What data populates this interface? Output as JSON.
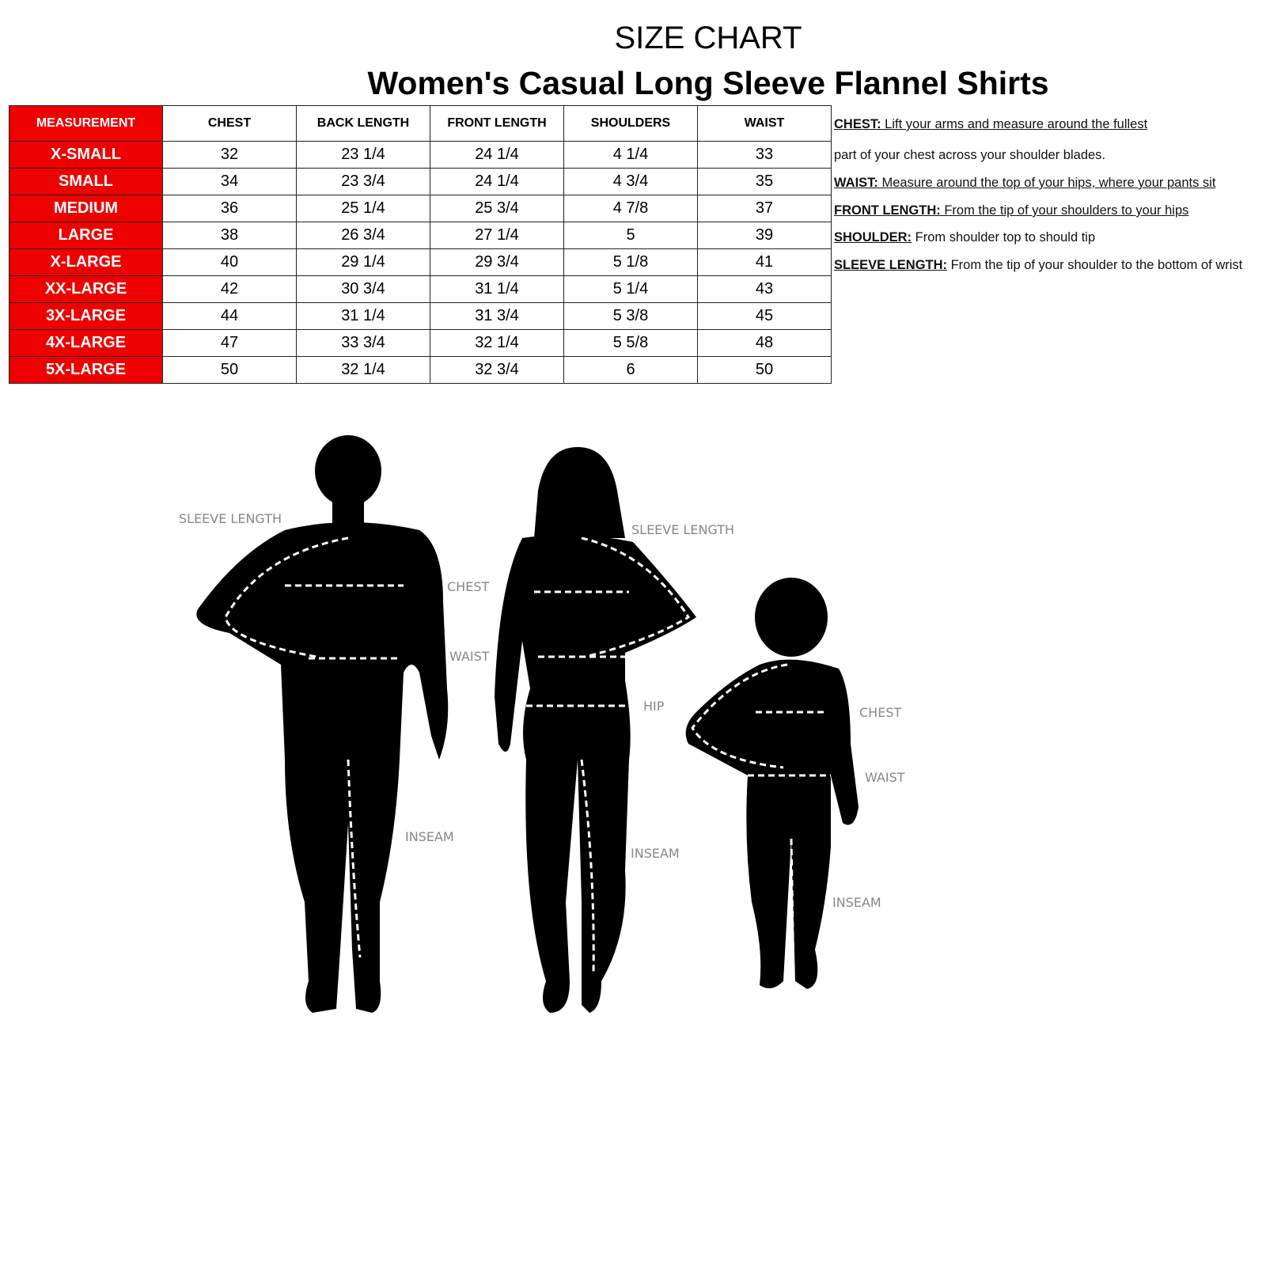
{
  "title": "SIZE CHART",
  "subtitle": "Women's  Casual Long Sleeve Flannel Shirts",
  "table": {
    "headers": [
      "MEASUREMENT",
      "CHEST",
      "BACK LENGTH",
      "FRONT LENGTH",
      "SHOULDERS",
      "WAIST"
    ],
    "rows": [
      [
        "X-SMALL",
        "32",
        "23 1/4",
        "24 1/4",
        "4 1/4",
        "33"
      ],
      [
        "SMALL",
        "34",
        "23 3/4",
        "24 1/4",
        "4 3/4",
        "35"
      ],
      [
        "MEDIUM",
        "36",
        "25 1/4",
        "25 3/4",
        "4 7/8",
        "37"
      ],
      [
        "LARGE",
        "38",
        "26 3/4",
        "27 1/4",
        "5",
        "39"
      ],
      [
        "X-LARGE",
        "40",
        "29 1/4",
        "29 3/4",
        "5 1/8",
        "41"
      ],
      [
        "XX-LARGE",
        "42",
        "30 3/4",
        "31 1/4",
        "5 1/4",
        "43"
      ],
      [
        "3X-LARGE",
        "44",
        "31 1/4",
        "31 3/4",
        "5 3/8",
        "45"
      ],
      [
        "4X-LARGE",
        "47",
        "33 3/4",
        "32 1/4",
        "5 5/8",
        "48"
      ],
      [
        "5X-LARGE",
        "50",
        "32 1/4",
        "32 3/4",
        "6",
        "50"
      ]
    ],
    "size_color": "#ee0000"
  },
  "notes": [
    {
      "label": "CHEST:",
      "text": " Lift your arms and measure around the fullest "
    },
    {
      "label": "",
      "text": "part of your chest across your shoulder blades."
    },
    {
      "label": "WAIST:",
      "text": " Measure around the top of  your hips, where your pants sit"
    },
    {
      "label": "FRONT LENGTH:",
      "text": " From the tip of your shoulders to your hips"
    },
    {
      "label": "SHOULDER:",
      "text": " From shoulder top to should tip"
    },
    {
      "label": "SLEEVE LENGTH:",
      "text": " From the tip of your shoulder to the bottom of wrist"
    }
  ],
  "figure_labels": {
    "man": {
      "sleeve": "SLEEVE LENGTH",
      "chest": "CHEST",
      "waist": "WAIST",
      "inseam": "INSEAM"
    },
    "woman": {
      "sleeve": "SLEEVE LENGTH",
      "hip": "HIP",
      "inseam": "INSEAM"
    },
    "child": {
      "chest": "CHEST",
      "waist": "WAIST",
      "inseam": "INSEAM"
    }
  }
}
